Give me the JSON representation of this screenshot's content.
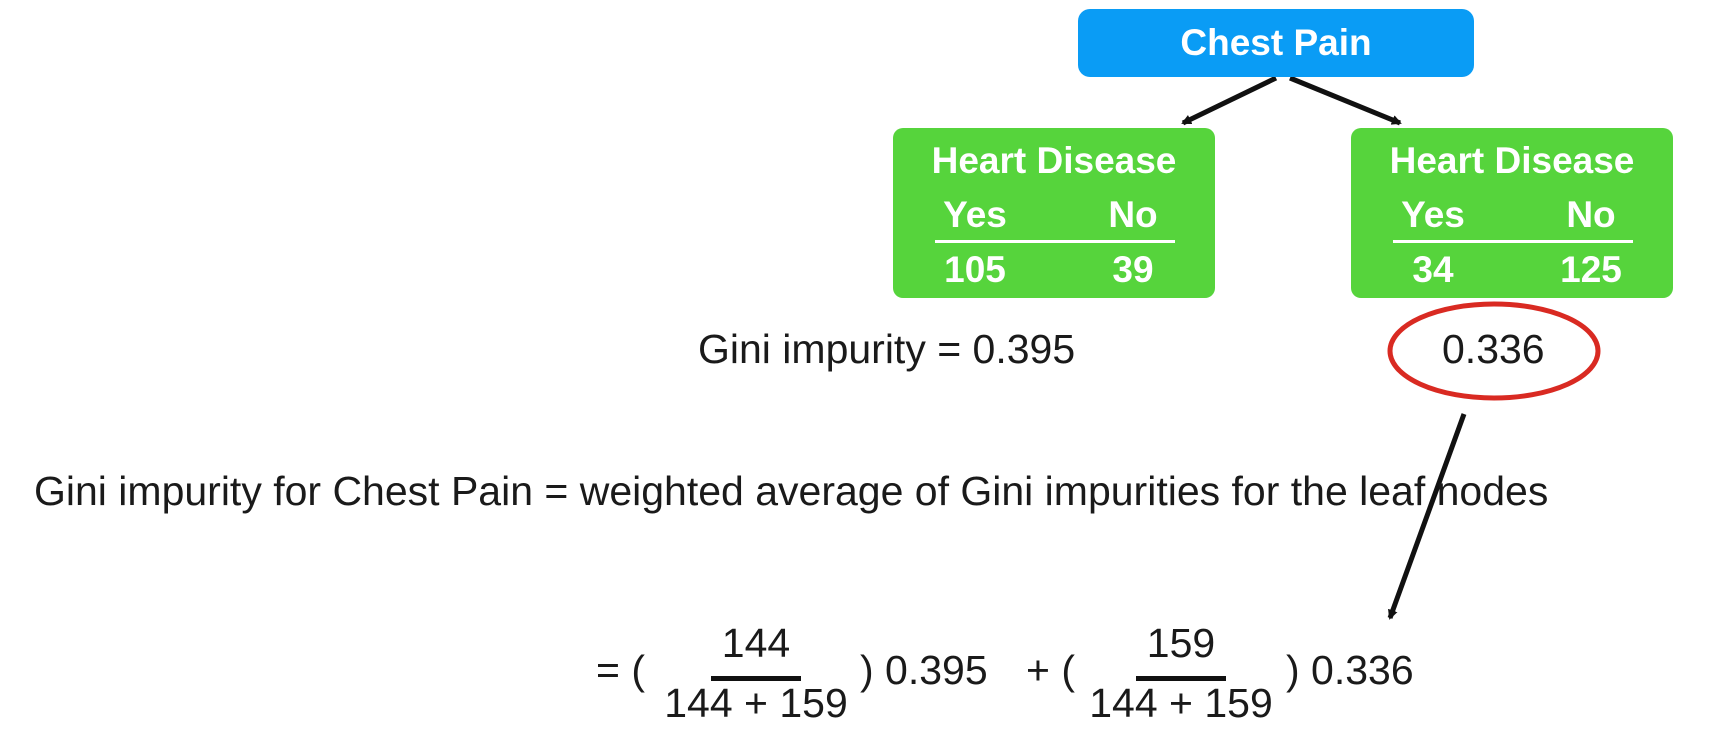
{
  "colors": {
    "root_fill": "#0a9cf5",
    "leaf_fill": "#56d43c",
    "highlight_ring": "#d92a22",
    "arrow": "#111111"
  },
  "tree": {
    "root_label": "Chest Pain",
    "left_leaf": {
      "title": "Heart Disease",
      "yes_label": "Yes",
      "no_label": "No",
      "yes_value": "105",
      "no_value": "39"
    },
    "right_leaf": {
      "title": "Heart Disease",
      "yes_label": "Yes",
      "no_label": "No",
      "yes_value": "34",
      "no_value": "125"
    }
  },
  "left_gini_text": "Gini impurity = 0.395",
  "right_gini_value": "0.336",
  "definition_text": "Gini impurity for Chest Pain = weighted average of Gini impurities for the leaf nodes",
  "formula": {
    "equals_open": "= (",
    "frac1_num": "144",
    "frac1_den": "144 + 159",
    "close1_value": ") 0.395",
    "plus_open": "+ (",
    "frac2_num": "159",
    "frac2_den": "144 + 159",
    "close2_value": ") 0.336"
  }
}
